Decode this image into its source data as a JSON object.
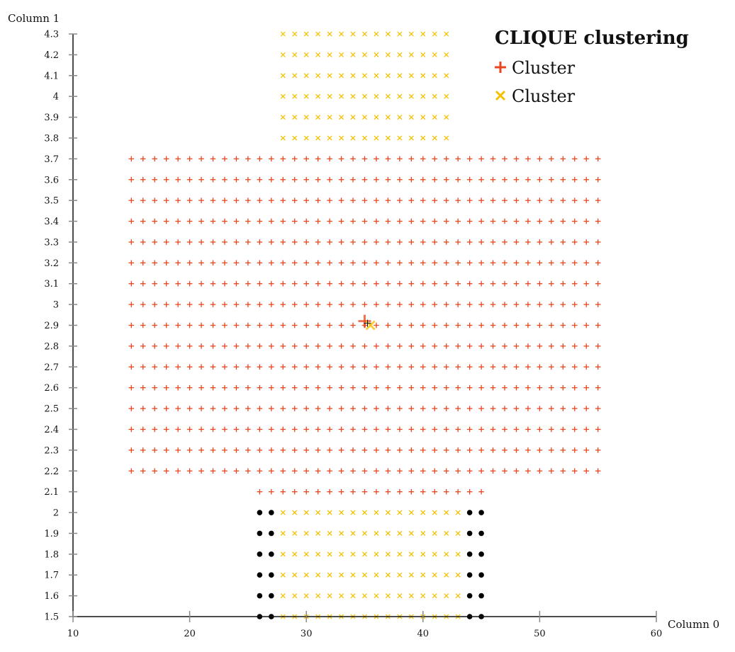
{
  "chart_data": {
    "type": "scatter",
    "title": "CLIQUE clustering",
    "xlabel": "Column 0",
    "ylabel": "Column 1",
    "xlim": [
      10,
      60
    ],
    "ylim": [
      1.5,
      4.3
    ],
    "xticks": [
      "10",
      "20",
      "30",
      "40",
      "50",
      "60"
    ],
    "yticks": [
      "1.5",
      "1.6",
      "1.7",
      "1.8",
      "1.9",
      "2",
      "2.1",
      "2.2",
      "2.3",
      "2.4",
      "2.5",
      "2.6",
      "2.7",
      "2.8",
      "2.9",
      "3",
      "3.1",
      "3.2",
      "3.3",
      "3.4",
      "3.5",
      "3.6",
      "3.7",
      "3.8",
      "3.9",
      "4",
      "4.1",
      "4.2",
      "4.3"
    ],
    "legend_position": "top-right",
    "grid": false,
    "series": [
      {
        "name": "Cluster",
        "marker": "plus",
        "color": "#e8461e",
        "blocks": [
          {
            "x_from": 15,
            "x_to": 55,
            "x_step": 1,
            "y_from": 2.2,
            "y_to": 3.7,
            "y_step": 0.1
          },
          {
            "x_from": 26,
            "x_to": 45,
            "x_step": 1,
            "y_from": 2.1,
            "y_to": 2.1,
            "y_step": 0.1
          }
        ],
        "centroid": {
          "x": 35,
          "y": 2.92
        }
      },
      {
        "name": "Cluster",
        "marker": "x",
        "color": "#f5c000",
        "blocks": [
          {
            "x_from": 28,
            "x_to": 42,
            "x_step": 1,
            "y_from": 3.8,
            "y_to": 4.3,
            "y_step": 0.1
          },
          {
            "x_from": 28,
            "x_to": 43,
            "x_step": 1,
            "y_from": 1.5,
            "y_to": 2.0,
            "y_step": 0.1
          }
        ],
        "centroid": {
          "x": 35.5,
          "y": 2.9
        }
      },
      {
        "name": "",
        "marker": "dot",
        "color": "#000000",
        "blocks": [
          {
            "x_from": 26,
            "x_to": 27,
            "x_step": 1,
            "y_from": 1.5,
            "y_to": 2.0,
            "y_step": 0.1
          },
          {
            "x_from": 44,
            "x_to": 45,
            "x_step": 1,
            "y_from": 1.5,
            "y_to": 2.0,
            "y_step": 0.1
          }
        ]
      }
    ]
  }
}
